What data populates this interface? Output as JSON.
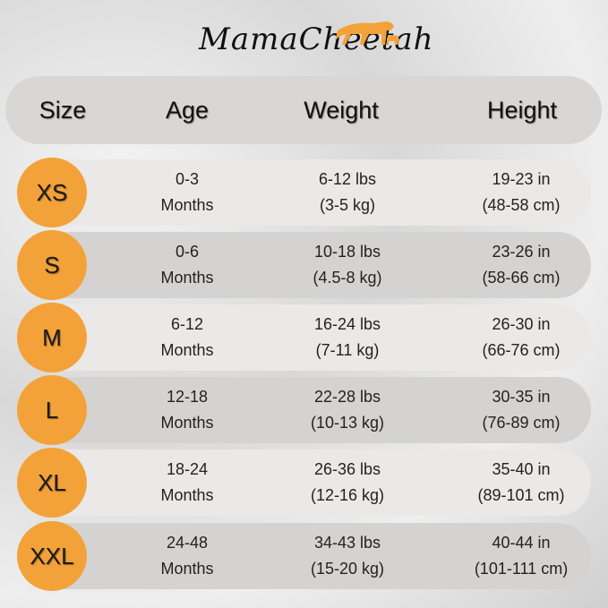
{
  "brand": {
    "logo_text": "MamaCheetah",
    "registered": "®"
  },
  "colors": {
    "accent": "#f3a23a",
    "header_bg": "#d9d7d5",
    "row_light": "#ebe9e7",
    "row_dark": "#d5d3d1"
  },
  "headers": [
    "Size",
    "Age",
    "Weight",
    "Height"
  ],
  "rows": [
    {
      "size": "XS",
      "age": [
        "0-3",
        "Months"
      ],
      "weight": [
        "6-12 lbs",
        "(3-5 kg)"
      ],
      "height": [
        "19-23 in",
        "(48-58 cm)"
      ]
    },
    {
      "size": "S",
      "age": [
        "0-6",
        "Months"
      ],
      "weight": [
        "10-18 lbs",
        "(4.5-8 kg)"
      ],
      "height": [
        "23-26 in",
        "(58-66 cm)"
      ]
    },
    {
      "size": "M",
      "age": [
        "6-12",
        "Months"
      ],
      "weight": [
        "16-24 lbs",
        "(7-11 kg)"
      ],
      "height": [
        "26-30 in",
        "(66-76 cm)"
      ]
    },
    {
      "size": "L",
      "age": [
        "12-18",
        "Months"
      ],
      "weight": [
        "22-28 lbs",
        "(10-13 kg)"
      ],
      "height": [
        "30-35 in",
        "(76-89 cm)"
      ]
    },
    {
      "size": "XL",
      "age": [
        "18-24",
        "Months"
      ],
      "weight": [
        "26-36 lbs",
        "(12-16 kg)"
      ],
      "height": [
        "35-40 in",
        "(89-101 cm)"
      ]
    },
    {
      "size": "XXL",
      "age": [
        "24-48",
        "Months"
      ],
      "weight": [
        "34-43 lbs",
        "(15-20 kg)"
      ],
      "height": [
        "40-44 in",
        "(101-111 cm)"
      ]
    }
  ]
}
